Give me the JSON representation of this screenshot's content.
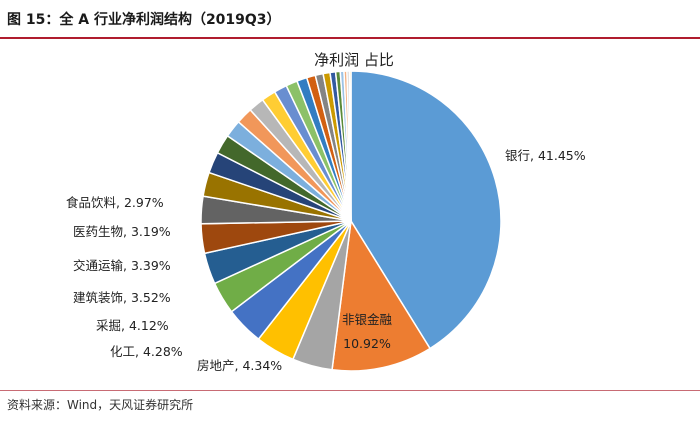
{
  "figure": {
    "title": "图 15：全 A 行业净利润结构（2019Q3）",
    "source": "资料来源：Wind，天风证券研究所"
  },
  "chart_data": {
    "type": "pie",
    "title": "净利润 占比",
    "slices": [
      {
        "name": "银行",
        "value": 41.45,
        "label": "银行, 41.45%",
        "color": "#5b9bd5"
      },
      {
        "name": "非银金融",
        "value": 10.92,
        "label": "非银金融\n10.92%",
        "color": "#ed7d31"
      },
      {
        "name": "房地产",
        "value": 4.34,
        "label": "房地产, 4.34%",
        "color": "#a5a5a5"
      },
      {
        "name": "化工",
        "value": 4.28,
        "label": "化工, 4.28%",
        "color": "#ffc000"
      },
      {
        "name": "采掘",
        "value": 4.12,
        "label": "采掘, 4.12%",
        "color": "#4472c4"
      },
      {
        "name": "建筑装饰",
        "value": 3.52,
        "label": "建筑装饰, 3.52%",
        "color": "#70ad47"
      },
      {
        "name": "交通运输",
        "value": 3.39,
        "label": "交通运输, 3.39%",
        "color": "#255e91"
      },
      {
        "name": "医药生物",
        "value": 3.19,
        "label": "医药生物, 3.19%",
        "color": "#9e480e"
      },
      {
        "name": "食品饮料",
        "value": 2.97,
        "label": "食品饮料, 2.97%",
        "color": "#636363"
      },
      {
        "value": 2.6,
        "color": "#997300"
      },
      {
        "value": 2.3,
        "color": "#264478"
      },
      {
        "value": 2.1,
        "color": "#43682b"
      },
      {
        "value": 1.9,
        "color": "#7cafdd"
      },
      {
        "value": 1.8,
        "color": "#f1975a"
      },
      {
        "value": 1.7,
        "color": "#b7b7b7"
      },
      {
        "value": 1.55,
        "color": "#ffcd33"
      },
      {
        "value": 1.4,
        "color": "#698ed0"
      },
      {
        "value": 1.25,
        "color": "#8cc168"
      },
      {
        "value": 1.1,
        "color": "#327dc2"
      },
      {
        "value": 0.95,
        "color": "#d26012"
      },
      {
        "value": 0.85,
        "color": "#848484"
      },
      {
        "value": 0.75,
        "color": "#cc9a00"
      },
      {
        "value": 0.6,
        "color": "#335aa1"
      },
      {
        "value": 0.5,
        "color": "#5a8a39"
      },
      {
        "value": 0.4,
        "color": "#9dc3e6"
      },
      {
        "value": 0.32,
        "color": "#f4b183"
      },
      {
        "value": 0.25,
        "color": "#c9c9c9"
      },
      {
        "value": 0.18,
        "color": "#ffd966"
      }
    ]
  }
}
